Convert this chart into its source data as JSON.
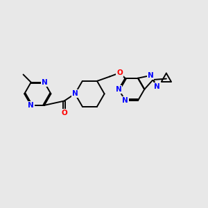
{
  "bg_color": "#e8e8e8",
  "bond_color": "#000000",
  "n_color": "#0000ff",
  "o_color": "#ff0000",
  "lw": 1.4,
  "dbl_off": 0.055,
  "afs": 7.5,
  "figsize": [
    3.0,
    3.0
  ],
  "dpi": 100,
  "xlim": [
    0,
    10
  ],
  "ylim": [
    1,
    9
  ]
}
